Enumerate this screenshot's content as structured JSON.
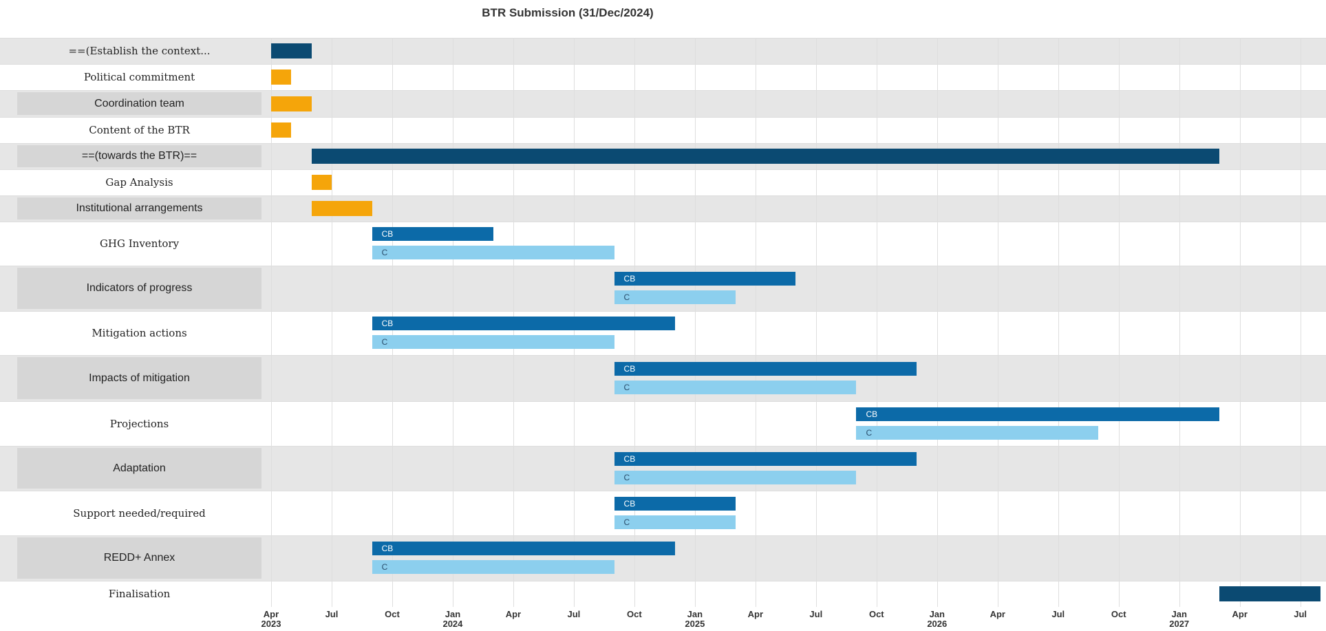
{
  "chart_data": {
    "type": "gantt",
    "title": "BTR Submission (31/Dec/2024)",
    "xlim": [
      "2023-04",
      "2027-08"
    ],
    "xticks": [
      {
        "value": "2023-04",
        "label": "Apr\n2023"
      },
      {
        "value": "2023-07",
        "label": "Jul"
      },
      {
        "value": "2023-10",
        "label": "Oct"
      },
      {
        "value": "2024-01",
        "label": "Jan\n2024"
      },
      {
        "value": "2024-04",
        "label": "Apr"
      },
      {
        "value": "2024-07",
        "label": "Jul"
      },
      {
        "value": "2024-10",
        "label": "Oct"
      },
      {
        "value": "2025-01",
        "label": "Jan\n2025"
      },
      {
        "value": "2025-04",
        "label": "Apr"
      },
      {
        "value": "2025-07",
        "label": "Jul"
      },
      {
        "value": "2025-10",
        "label": "Oct"
      },
      {
        "value": "2026-01",
        "label": "Jan\n2026"
      },
      {
        "value": "2026-04",
        "label": "Apr"
      },
      {
        "value": "2026-07",
        "label": "Jul"
      },
      {
        "value": "2026-10",
        "label": "Oct"
      },
      {
        "value": "2027-01",
        "label": "Jan\n2027"
      },
      {
        "value": "2027-04",
        "label": "Apr"
      },
      {
        "value": "2027-07",
        "label": "Jul"
      }
    ],
    "grid": true,
    "tasks": [
      {
        "name": "==(Establish the context...",
        "bars": [
          {
            "start": "2023-04",
            "end": "2023-06",
            "color": "#0b4a72"
          }
        ]
      },
      {
        "name": "Political commitment",
        "bars": [
          {
            "start": "2023-04",
            "end": "2023-05",
            "color": "#f5a50a"
          }
        ]
      },
      {
        "name": "Coordination team",
        "bars": [
          {
            "start": "2023-04",
            "end": "2023-06",
            "color": "#f5a50a"
          }
        ]
      },
      {
        "name": "Content of the BTR",
        "bars": [
          {
            "start": "2023-04",
            "end": "2023-05",
            "color": "#f5a50a"
          }
        ]
      },
      {
        "name": "==(towards the BTR)==",
        "bars": [
          {
            "start": "2023-06",
            "end": "2027-03",
            "color": "#0b4a72"
          }
        ]
      },
      {
        "name": "Gap Analysis",
        "bars": [
          {
            "start": "2023-06",
            "end": "2023-07",
            "color": "#f5a50a"
          }
        ]
      },
      {
        "name": "Institutional arrangements",
        "bars": [
          {
            "start": "2023-06",
            "end": "2023-09",
            "color": "#f5a50a"
          }
        ]
      },
      {
        "name": "GHG Inventory",
        "bars": [
          {
            "label": "CB",
            "start": "2023-09",
            "end": "2024-03",
            "color": "#0c6aa8"
          },
          {
            "label": "C",
            "start": "2023-09",
            "end": "2024-09",
            "color": "#8ccfee"
          }
        ]
      },
      {
        "name": "Indicators of progress",
        "bars": [
          {
            "label": "CB",
            "start": "2024-09",
            "end": "2025-06",
            "color": "#0c6aa8"
          },
          {
            "label": "C",
            "start": "2024-09",
            "end": "2025-03",
            "color": "#8ccfee"
          }
        ]
      },
      {
        "name": "Mitigation actions",
        "bars": [
          {
            "label": "CB",
            "start": "2023-09",
            "end": "2024-12",
            "color": "#0c6aa8"
          },
          {
            "label": "C",
            "start": "2023-09",
            "end": "2024-09",
            "color": "#8ccfee"
          }
        ]
      },
      {
        "name": "Impacts of mitigation",
        "bars": [
          {
            "label": "CB",
            "start": "2024-09",
            "end": "2025-12",
            "color": "#0c6aa8"
          },
          {
            "label": "C",
            "start": "2024-09",
            "end": "2025-09",
            "color": "#8ccfee"
          }
        ]
      },
      {
        "name": "Projections",
        "bars": [
          {
            "label": "CB",
            "start": "2025-09",
            "end": "2027-03",
            "color": "#0c6aa8"
          },
          {
            "label": "C",
            "start": "2025-09",
            "end": "2026-09",
            "color": "#8ccfee"
          }
        ]
      },
      {
        "name": "Adaptation",
        "bars": [
          {
            "label": "CB",
            "start": "2024-09",
            "end": "2025-12",
            "color": "#0c6aa8"
          },
          {
            "label": "C",
            "start": "2024-09",
            "end": "2025-09",
            "color": "#8ccfee"
          }
        ]
      },
      {
        "name": "Support needed/required",
        "bars": [
          {
            "label": "CB",
            "start": "2024-09",
            "end": "2025-03",
            "color": "#0c6aa8"
          },
          {
            "label": "C",
            "start": "2024-09",
            "end": "2025-03",
            "color": "#8ccfee"
          }
        ]
      },
      {
        "name": "REDD+ Annex",
        "bars": [
          {
            "label": "CB",
            "start": "2023-09",
            "end": "2024-12",
            "color": "#0c6aa8"
          },
          {
            "label": "C",
            "start": "2023-09",
            "end": "2024-09",
            "color": "#8ccfee"
          }
        ]
      },
      {
        "name": "Finalisation",
        "bars": [
          {
            "start": "2027-03",
            "end": "2027-08",
            "color": "#0b4a72"
          }
        ]
      }
    ]
  }
}
